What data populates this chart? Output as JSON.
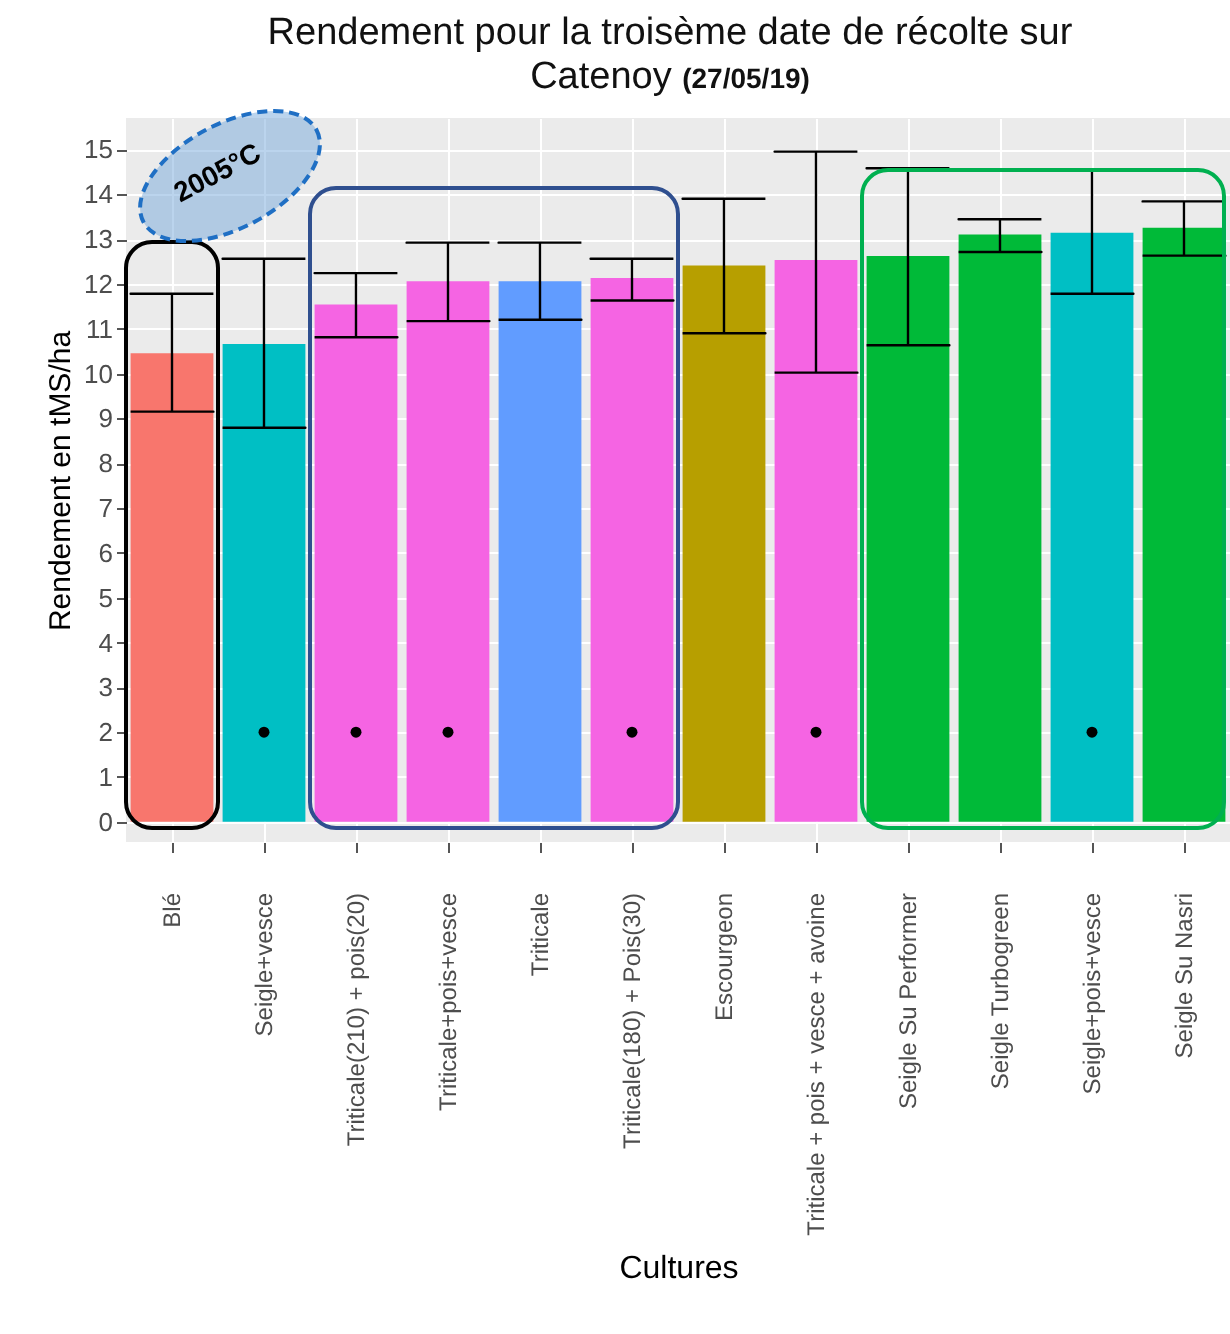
{
  "chart_data": {
    "type": "bar",
    "title": "Rendement pour la troisème date de récolte sur Catenoy",
    "xlabel": "Cultures",
    "ylabel": "Rendement en tMS/ha",
    "annotations": [
      "(27/05/19)",
      "2005°C"
    ],
    "categories": [
      "Blé",
      "Seigle+vesce",
      "Triticale(210) + pois(20)",
      "Triticale+pois+vesce",
      "Triticale",
      "Triticale(180) + Pois(30)",
      "Escourgeon",
      "Triticale + pois + vesce + avoine",
      "Seigle Su Performer",
      "Seigle Turbogreen",
      "Seigle+pois+vesce",
      "Seigle Su Nasri"
    ],
    "series": [
      {
        "colors": [
          "#f8766d",
          "#00bfc4",
          "#f564e3",
          "#f564e3",
          "#619cff",
          "#f564e3",
          "#b79f00",
          "#f564e3",
          "#00ba38",
          "#00ba38",
          "#00bfc4",
          "#00ba38"
        ],
        "values": [
          10.45,
          10.66,
          11.54,
          12.06,
          12.06,
          12.13,
          12.41,
          12.53,
          12.62,
          13.1,
          13.14,
          13.25
        ],
        "errors": [
          [
            9.15,
            11.78
          ],
          [
            8.79,
            12.56
          ],
          [
            10.81,
            12.24
          ],
          [
            11.17,
            12.92
          ],
          [
            11.2,
            12.92
          ],
          [
            11.63,
            12.56
          ],
          [
            10.9,
            13.9
          ],
          [
            10.02,
            14.95
          ],
          [
            10.63,
            14.58
          ],
          [
            12.71,
            13.44
          ],
          [
            11.78,
            14.52
          ],
          [
            12.63,
            13.84
          ]
        ]
      },
      {
        "type": "scatter",
        "color": "#000000",
        "marker": "circle",
        "x": [
          "Seigle+vesce",
          "Triticale(210) + pois(20)",
          "Triticale+pois+vesce",
          "Triticale(180) + Pois(30)",
          "Triticale + pois + vesce + avoine",
          "Seigle+pois+vesce"
        ],
        "values": [
          2,
          2,
          2,
          2,
          2,
          2
        ]
      }
    ],
    "ylim": [
      -0.45,
      15.7
    ],
    "yticks": [
      0,
      1,
      2,
      3,
      4,
      5,
      6,
      7,
      8,
      9,
      10,
      11,
      12,
      13,
      14,
      15
    ],
    "grid": true
  }
}
